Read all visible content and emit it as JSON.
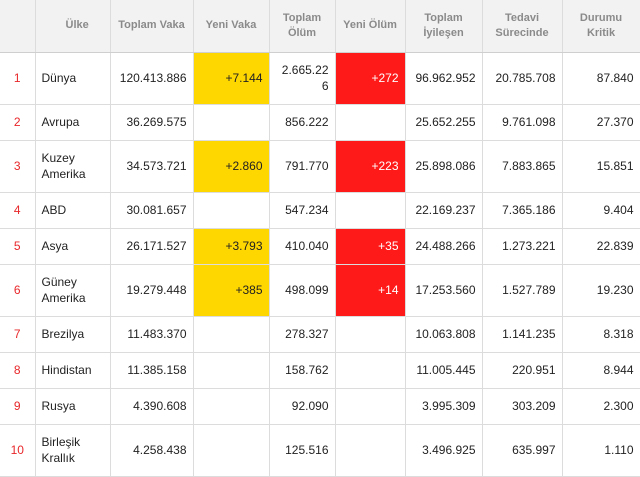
{
  "headers": {
    "rank": "",
    "country": "Ülke",
    "total_cases": "Toplam Vaka",
    "new_cases": "Yeni Vaka",
    "total_deaths": "Toplam Ölüm",
    "new_deaths": "Yeni Ölüm",
    "total_recovered": "Toplam İyileşen",
    "active": "Tedavi Sürecinde",
    "critical": "Durumu Kritik"
  },
  "colors": {
    "new_cases_highlight": "#ffd700",
    "new_deaths_highlight": "#ff1a1a",
    "rank_text": "#e8272a"
  },
  "rows": [
    {
      "rank": "1",
      "country": "Dünya",
      "total_cases": "120.413.886",
      "new_cases": "+7.144",
      "total_deaths": "2.665.226",
      "new_deaths": "+272",
      "total_recovered": "96.962.952",
      "active": "20.785.708",
      "critical": "87.840"
    },
    {
      "rank": "2",
      "country": "Avrupa",
      "total_cases": "36.269.575",
      "new_cases": "",
      "total_deaths": "856.222",
      "new_deaths": "",
      "total_recovered": "25.652.255",
      "active": "9.761.098",
      "critical": "27.370"
    },
    {
      "rank": "3",
      "country": "Kuzey Amerika",
      "total_cases": "34.573.721",
      "new_cases": "+2.860",
      "total_deaths": "791.770",
      "new_deaths": "+223",
      "total_recovered": "25.898.086",
      "active": "7.883.865",
      "critical": "15.851"
    },
    {
      "rank": "4",
      "country": "ABD",
      "total_cases": "30.081.657",
      "new_cases": "",
      "total_deaths": "547.234",
      "new_deaths": "",
      "total_recovered": "22.169.237",
      "active": "7.365.186",
      "critical": "9.404"
    },
    {
      "rank": "5",
      "country": "Asya",
      "total_cases": "26.171.527",
      "new_cases": "+3.793",
      "total_deaths": "410.040",
      "new_deaths": "+35",
      "total_recovered": "24.488.266",
      "active": "1.273.221",
      "critical": "22.839"
    },
    {
      "rank": "6",
      "country": "Güney Amerika",
      "total_cases": "19.279.448",
      "new_cases": "+385",
      "total_deaths": "498.099",
      "new_deaths": "+14",
      "total_recovered": "17.253.560",
      "active": "1.527.789",
      "critical": "19.230"
    },
    {
      "rank": "7",
      "country": "Brezilya",
      "total_cases": "11.483.370",
      "new_cases": "",
      "total_deaths": "278.327",
      "new_deaths": "",
      "total_recovered": "10.063.808",
      "active": "1.141.235",
      "critical": "8.318"
    },
    {
      "rank": "8",
      "country": "Hindistan",
      "total_cases": "11.385.158",
      "new_cases": "",
      "total_deaths": "158.762",
      "new_deaths": "",
      "total_recovered": "11.005.445",
      "active": "220.951",
      "critical": "8.944"
    },
    {
      "rank": "9",
      "country": "Rusya",
      "total_cases": "4.390.608",
      "new_cases": "",
      "total_deaths": "92.090",
      "new_deaths": "",
      "total_recovered": "3.995.309",
      "active": "303.209",
      "critical": "2.300"
    },
    {
      "rank": "10",
      "country": "Birleşik Krallık",
      "total_cases": "4.258.438",
      "new_cases": "",
      "total_deaths": "125.516",
      "new_deaths": "",
      "total_recovered": "3.496.925",
      "active": "635.997",
      "critical": "1.110"
    }
  ]
}
